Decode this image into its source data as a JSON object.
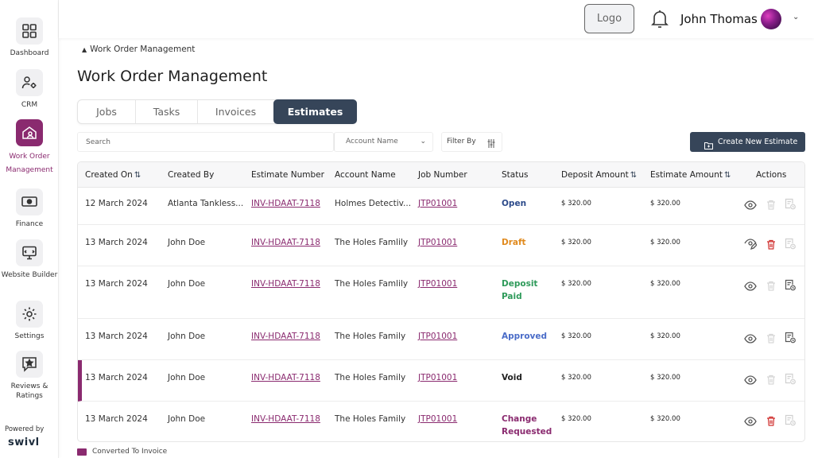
{
  "sidebar": {
    "items": [
      {
        "label": "Dashboard",
        "icon": "grid-icon"
      },
      {
        "label": "CRM",
        "icon": "users-gear-icon"
      },
      {
        "label": "Work Order Management",
        "icon": "home-user-icon",
        "active": true
      },
      {
        "label": "Finance",
        "icon": "money-icon"
      },
      {
        "label": "Website Builder",
        "icon": "monitor-icon"
      },
      {
        "label": "Settings",
        "icon": "gear-icon"
      },
      {
        "label": "Reviews & Ratings",
        "icon": "star-chat-icon"
      }
    ],
    "powered_by": "Powered by",
    "brand": "swivl"
  },
  "header": {
    "logo": "Logo",
    "user_name": "John Thomas"
  },
  "breadcrumb": "Work Order Management",
  "page_title": "Work Order Management",
  "tabs": [
    "Jobs",
    "Tasks",
    "Invoices",
    "Estimates"
  ],
  "active_tab": "Estimates",
  "filters": {
    "search_placeholder": "Search",
    "account_placeholder": "Account Name",
    "filter_by": "Filter By",
    "create_label": "Create New Estimate"
  },
  "table": {
    "headers": {
      "created_on": "Created On",
      "created_by": "Created By",
      "estimate_number": "Estimate Number",
      "account_name": "Account Name",
      "job_number": "Job Number",
      "status": "Status",
      "deposit_amount": "Deposit Amount",
      "estimate_amount": "Estimate Amount",
      "actions": "Actions"
    },
    "rows": [
      {
        "created_on": "12 March 2024",
        "created_by": "Atlanta Tankless...",
        "estimate_number": "INV-HDAAT-7118",
        "account_name": "Holmes Detectiv...",
        "job_number": "JTP01001",
        "status": "Open",
        "status_color": "#2c4a8a",
        "deposit_amount": "$ 320.00",
        "estimate_amount": "$ 320.00"
      },
      {
        "created_on": "13 March 2024",
        "created_by": "John Doe",
        "estimate_number": "INV-HDAAT-7118",
        "account_name": "The Holes Famlily",
        "job_number": "JTP01001",
        "status": "Draft",
        "status_color": "#e08a1e",
        "deposit_amount": "$ 320.00",
        "estimate_amount": "$ 320.00"
      },
      {
        "created_on": "13 March 2024",
        "created_by": "John Doe",
        "estimate_number": "INV-HDAAT-7118",
        "account_name": "The Holes Famlily",
        "job_number": "JTP01001",
        "status": "Deposit Paid",
        "status_color": "#2e9a5a",
        "deposit_amount": "$ 320.00",
        "estimate_amount": "$ 320.00"
      },
      {
        "created_on": "13 March 2024",
        "created_by": "John Doe",
        "estimate_number": "INV-HDAAT-7118",
        "account_name": "The Holes Family",
        "job_number": "JTP01001",
        "status": "Approved",
        "status_color": "#4a6cc8",
        "deposit_amount": "$ 320.00",
        "estimate_amount": "$ 320.00"
      },
      {
        "created_on": "13 March 2024",
        "created_by": "John Doe",
        "estimate_number": "INV-HDAAT-7118",
        "account_name": "The Holes Family",
        "job_number": "JTP01001",
        "status": "Void",
        "status_color": "#222222",
        "deposit_amount": "$ 320.00",
        "estimate_amount": "$ 320.00"
      },
      {
        "created_on": "13 March 2024",
        "created_by": "John Doe",
        "estimate_number": "INV-HDAAT-7118",
        "account_name": "The Holes Family",
        "job_number": "JTP01001",
        "status": "Change Requested",
        "status_color": "#8a2a6f",
        "deposit_amount": "$ 320.00",
        "estimate_amount": "$ 320.00"
      }
    ]
  },
  "legend": {
    "label": "Converted To Invoice",
    "color": "#8a2a6f"
  },
  "colors": {
    "accent": "#8a2a6f",
    "primary": "#364559"
  }
}
